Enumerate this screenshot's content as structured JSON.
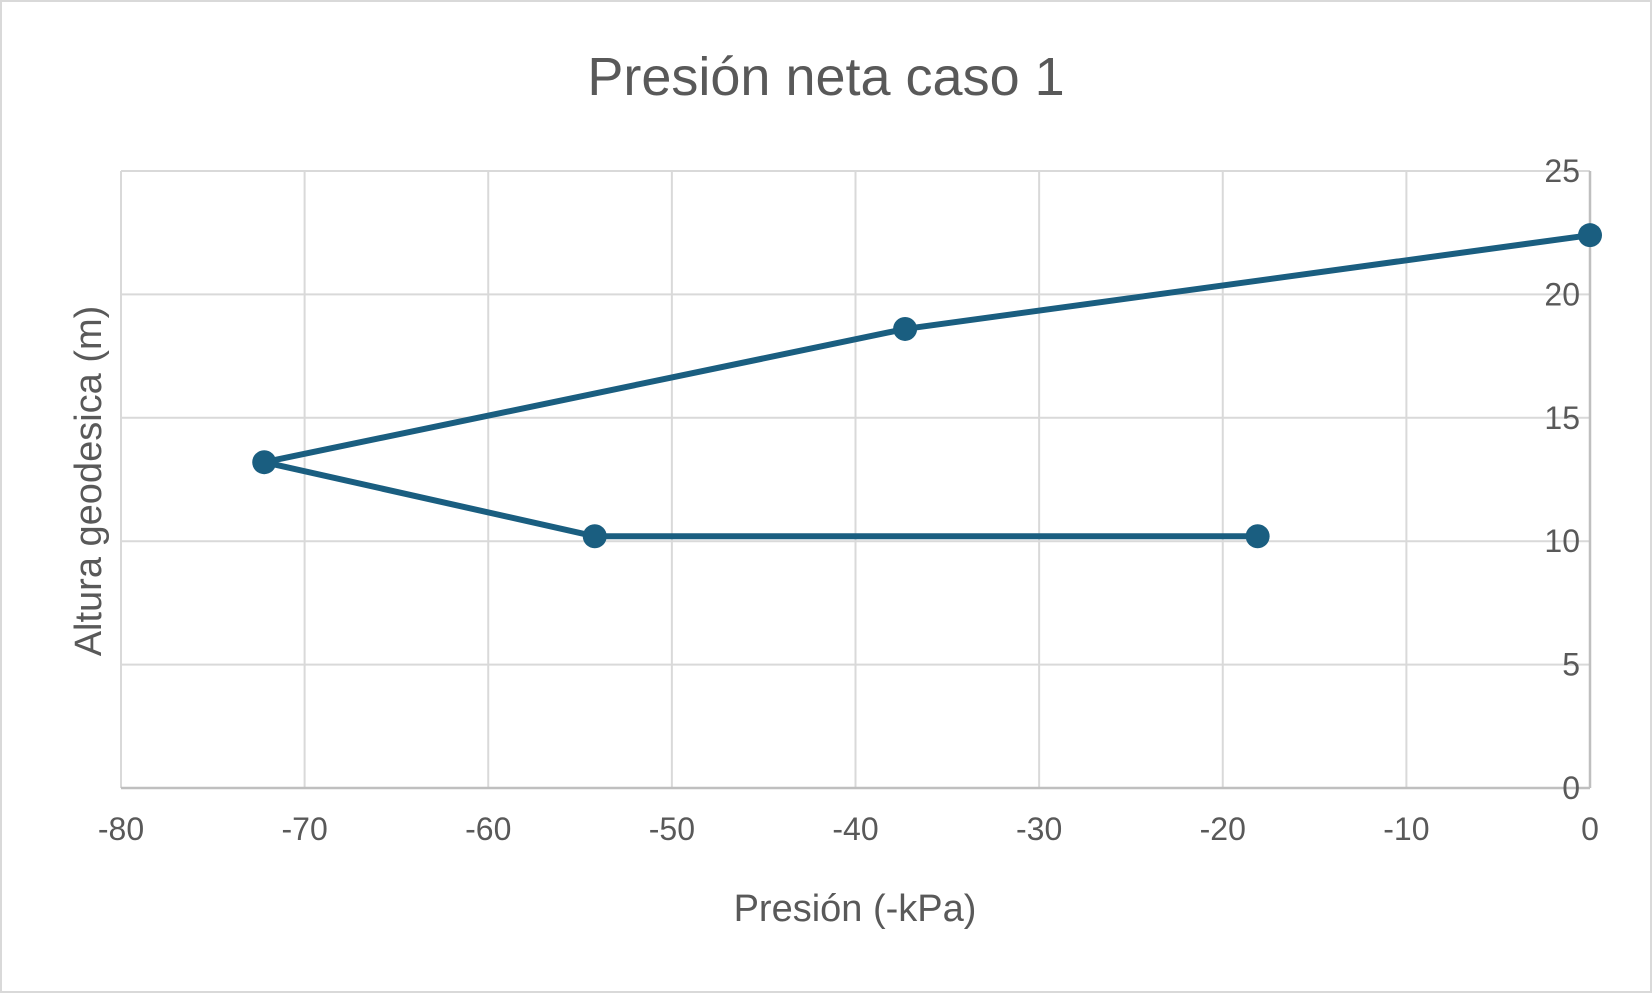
{
  "chart_data": {
    "type": "scatter",
    "title": "Presión neta caso 1",
    "xlabel": "Presión (-kPa)",
    "ylabel": "Altura geodesica (m)",
    "xlim": [
      -80,
      0
    ],
    "ylim": [
      0,
      25
    ],
    "xticks": [
      "-80",
      "-70",
      "-60",
      "-50",
      "-40",
      "-30",
      "-20",
      "-10",
      "0"
    ],
    "yticks": [
      "0",
      "5",
      "10",
      "15",
      "20",
      "25"
    ],
    "grid": true,
    "legend": "none",
    "y_axis_position": "right",
    "series": [
      {
        "color": "#1a5e80",
        "lines": true,
        "markers": true,
        "points": [
          {
            "x": 0,
            "y": 22.4
          },
          {
            "x": -37.3,
            "y": 18.6
          },
          {
            "x": -72.2,
            "y": 13.2
          },
          {
            "x": -54.2,
            "y": 10.2
          },
          {
            "x": -18.1,
            "y": 10.2
          }
        ]
      }
    ]
  },
  "colors": {
    "grid": "#d9d9d9",
    "axis": "#bfbfbf",
    "text": "#595959",
    "series": "#1a5e80"
  }
}
